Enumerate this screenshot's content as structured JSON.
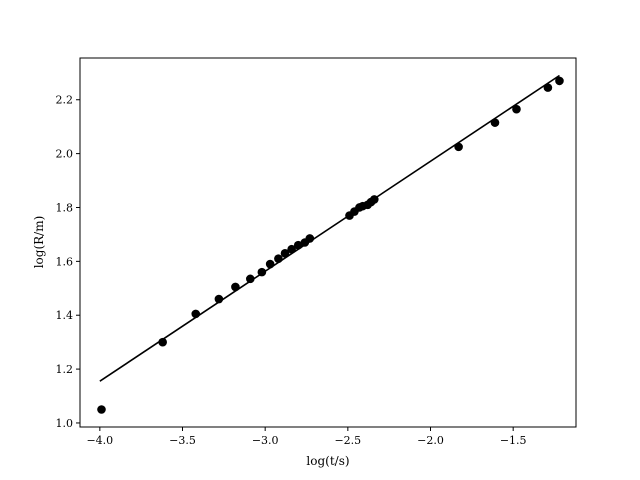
{
  "chart_data": {
    "type": "scatter",
    "title": "",
    "xlabel": "log(t/s)",
    "ylabel": "log(R/m)",
    "xlim": [
      -4.12,
      -1.12
    ],
    "ylim": [
      0.985,
      2.355
    ],
    "xticks": [
      -4.0,
      -3.5,
      -3.0,
      -2.5,
      -2.0,
      -1.5
    ],
    "xtick_labels": [
      "−4.0",
      "−3.5",
      "−3.0",
      "−2.5",
      "−2.0",
      "−1.5"
    ],
    "yticks": [
      1.0,
      1.2,
      1.4,
      1.6,
      1.8,
      2.0,
      2.2
    ],
    "ytick_labels": [
      "1.0",
      "1.2",
      "1.4",
      "1.6",
      "1.8",
      "2.0",
      "2.2"
    ],
    "grid": false,
    "legend": "none",
    "colors": {
      "points": "#000000",
      "line": "#000000"
    },
    "series": [
      {
        "kind": "points",
        "x": [
          -3.99,
          -3.62,
          -3.42,
          -3.28,
          -3.18,
          -3.09,
          -3.02,
          -2.97,
          -2.92,
          -2.88,
          -2.84,
          -2.8,
          -2.76,
          -2.73,
          -2.49,
          -2.46,
          -2.43,
          -2.41,
          -2.38,
          -2.36,
          -2.34,
          -1.83,
          -1.61,
          -1.48,
          -1.29,
          -1.22
        ],
        "y": [
          1.05,
          1.3,
          1.405,
          1.46,
          1.505,
          1.535,
          1.56,
          1.59,
          1.61,
          1.63,
          1.645,
          1.66,
          1.67,
          1.685,
          1.77,
          1.785,
          1.8,
          1.805,
          1.81,
          1.82,
          1.83,
          2.025,
          2.115,
          2.165,
          2.245,
          2.27
        ]
      },
      {
        "kind": "fit-line",
        "x": [
          -4.0,
          -1.22
        ],
        "y": [
          1.155,
          2.29
        ]
      }
    ]
  }
}
